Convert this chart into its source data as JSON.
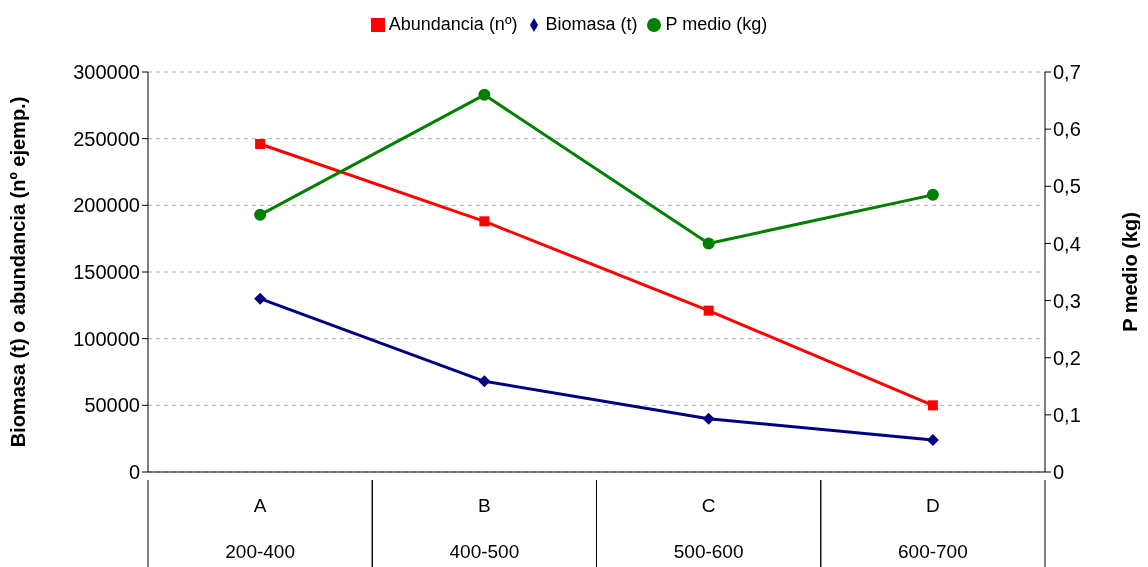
{
  "chart_data": {
    "type": "line",
    "categories": [
      "A\n200-400",
      "B\n400-500",
      "C\n500-600",
      "D\n600-700"
    ],
    "ylabel": "Biomasa (t) o abundancia (nº ejemp.)",
    "y2label": "P medio (kg)",
    "ylim": [
      0,
      300000
    ],
    "yticks": [
      0,
      50000,
      100000,
      150000,
      200000,
      250000,
      300000
    ],
    "y2lim": [
      0,
      0.7
    ],
    "y2ticks": [
      {
        "value": 0,
        "label": "0"
      },
      {
        "value": 0.1,
        "label": "0,1"
      },
      {
        "value": 0.2,
        "label": "0,2"
      },
      {
        "value": 0.3,
        "label": "0,3"
      },
      {
        "value": 0.4,
        "label": "0,4"
      },
      {
        "value": 0.5,
        "label": "0,5"
      },
      {
        "value": 0.6,
        "label": "0,6"
      },
      {
        "value": 0.7,
        "label": "0,7"
      }
    ],
    "grid": "y",
    "legend": "top",
    "series": [
      {
        "name": "Abundancia (nº)",
        "color": "#ff0000",
        "marker": "square",
        "values": [
          246000,
          188000,
          121000,
          50000
        ]
      },
      {
        "name": "Biomasa (t)",
        "color": "#000080",
        "marker": "diamond",
        "values": [
          130000,
          68000,
          40000,
          24000
        ]
      },
      {
        "name": "P medio (kg)",
        "color": "#008000",
        "marker": "circle",
        "axis": "y2",
        "values": [
          0.45,
          0.66,
          0.4,
          0.485
        ]
      }
    ]
  }
}
